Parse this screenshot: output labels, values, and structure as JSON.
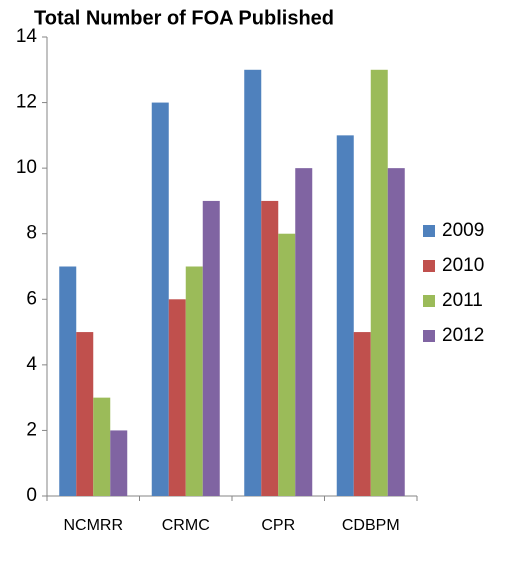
{
  "chart_data": {
    "type": "bar",
    "title": "Total Number of FOA Published",
    "categories": [
      "NCMRR",
      "CRMC",
      "CPR",
      "CDBPM"
    ],
    "series": [
      {
        "name": "2009",
        "color": "#4f81bd",
        "values": [
          7,
          12,
          13,
          11
        ]
      },
      {
        "name": "2010",
        "color": "#c0504d",
        "values": [
          5,
          6,
          9,
          5
        ]
      },
      {
        "name": "2011",
        "color": "#9bbb59",
        "values": [
          3,
          7,
          8,
          13
        ]
      },
      {
        "name": "2012",
        "color": "#8064a2",
        "values": [
          2,
          9,
          10,
          10
        ]
      }
    ],
    "ylim": [
      0,
      14
    ],
    "yticks": [
      0,
      2,
      4,
      6,
      8,
      10,
      12,
      14
    ],
    "grid": false,
    "legend": "right"
  }
}
